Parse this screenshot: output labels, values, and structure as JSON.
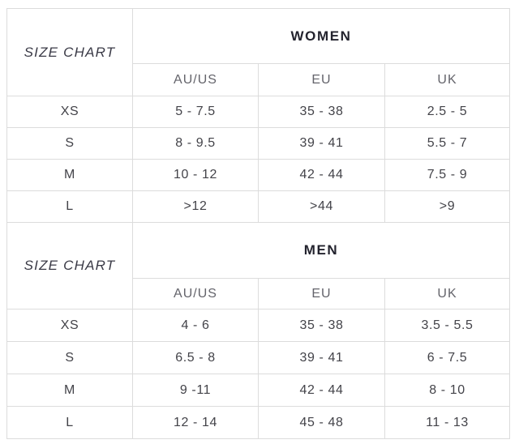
{
  "women": {
    "chart_label": "SIZE CHART",
    "title": "WOMEN",
    "columns": [
      "AU/US",
      "EU",
      "UK"
    ],
    "rows": [
      {
        "size": "XS",
        "values": [
          "5 - 7.5",
          "35 - 38",
          "2.5 - 5"
        ]
      },
      {
        "size": "S",
        "values": [
          "8 - 9.5",
          "39 - 41",
          "5.5 - 7"
        ]
      },
      {
        "size": "M",
        "values": [
          "10 - 12",
          "42 - 44",
          "7.5 - 9"
        ]
      },
      {
        "size": "L",
        "values": [
          ">12",
          ">44",
          ">9"
        ]
      }
    ]
  },
  "men": {
    "chart_label": "SIZE CHART",
    "title": "MEN",
    "columns": [
      "AU/US",
      "EU",
      "UK"
    ],
    "rows": [
      {
        "size": "XS",
        "values": [
          "4 - 6",
          "35 - 38",
          "3.5 - 5.5"
        ]
      },
      {
        "size": "S",
        "values": [
          "6.5 - 8",
          "39 - 41",
          "6 - 7.5"
        ]
      },
      {
        "size": "M",
        "values": [
          "9 -11",
          "42 - 44",
          "8 - 10"
        ]
      },
      {
        "size": "L",
        "values": [
          "12 - 14",
          "45 - 48",
          "11 - 13"
        ]
      }
    ]
  },
  "colors": {
    "border": "#dcdcdc",
    "title_text": "#23232e",
    "column_header_text": "#64646b",
    "cell_text": "#434349",
    "background": "#ffffff"
  }
}
